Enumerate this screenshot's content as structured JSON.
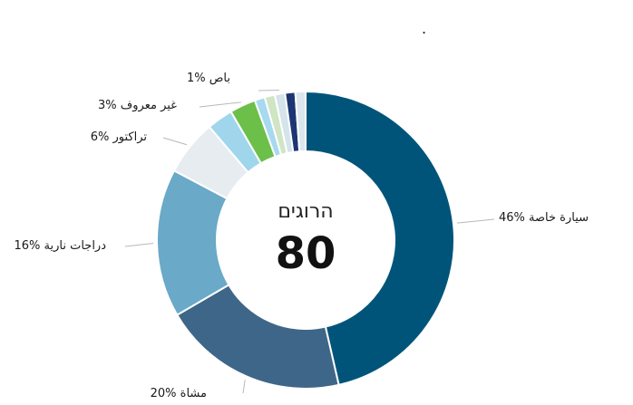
{
  "mark": ".",
  "chart_data": {
    "type": "pie",
    "center_title": "הרוגים",
    "center_value": "80",
    "slices": [
      {
        "label": "46% سيارة خاصة",
        "value": 46,
        "color": "#00547a"
      },
      {
        "label": "20% مشاة",
        "value": 20,
        "color": "#3e6688"
      },
      {
        "label": "16% دراجات نارية",
        "value": 16,
        "color": "#6aa9c8"
      },
      {
        "label": "6% تراكتور",
        "value": 6,
        "color": "#e6ecf0"
      },
      {
        "label": "",
        "value": 2.8,
        "color": "#9fd6ec"
      },
      {
        "label": "3% غير معروف",
        "value": 2.8,
        "color": "#6cc04a"
      },
      {
        "label": "",
        "value": 1.1,
        "color": "#a7d9ef"
      },
      {
        "label": "",
        "value": 1.1,
        "color": "#cfe5c4"
      },
      {
        "label": "1% باص",
        "value": 1.1,
        "color": "#d5e3ea"
      },
      {
        "label": "",
        "value": 1.1,
        "color": "#1c3573"
      },
      {
        "label": "",
        "value": 1.1,
        "color": "#dbe6ed"
      }
    ]
  }
}
